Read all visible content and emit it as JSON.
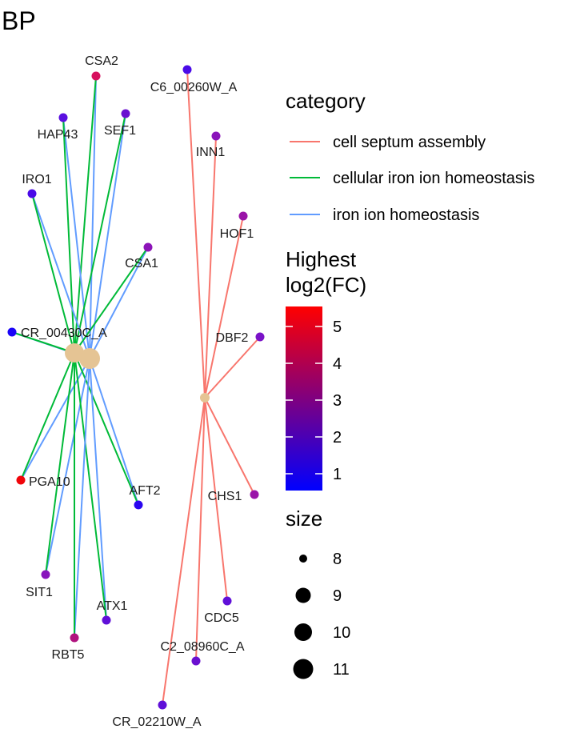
{
  "title": "BP",
  "legend": {
    "category_title": "category",
    "categories": [
      {
        "label": "cell septum assembly",
        "color": "#F8766D"
      },
      {
        "label": "cellular iron ion homeostasis",
        "color": "#00BA38"
      },
      {
        "label": "iron ion homeostasis",
        "color": "#619CFF"
      }
    ],
    "fc_title_line1": "Highest",
    "fc_title_line2": "log2(FC)",
    "fc_ticks": [
      "5",
      "4",
      "3",
      "2",
      "1"
    ],
    "fc_colors": {
      "low": "#0000FF",
      "high": "#FF0000"
    },
    "size_title": "size",
    "size_values": [
      "8",
      "9",
      "10",
      "11"
    ]
  },
  "hub_color": "#E5C494",
  "genes": {
    "CSA2": {
      "label": "CSA2",
      "color": "#D7105E"
    },
    "HAP43": {
      "label": "HAP43",
      "color": "#5A0FE0"
    },
    "SEF1": {
      "label": "SEF1",
      "color": "#6A10D0"
    },
    "IRO1": {
      "label": "IRO1",
      "color": "#4A0BE8"
    },
    "CSA1": {
      "label": "CSA1",
      "color": "#8C14B8"
    },
    "CR_00430C_A": {
      "label": "CR_00430C_A",
      "color": "#1A04F8"
    },
    "PGA10": {
      "label": "PGA10",
      "color": "#F0050A"
    },
    "AFT2": {
      "label": "AFT2",
      "color": "#2A06F0"
    },
    "SIT1": {
      "label": "SIT1",
      "color": "#8814BC"
    },
    "ATX1": {
      "label": "ATX1",
      "color": "#6010D8"
    },
    "RBT5": {
      "label": "RBT5",
      "color": "#B0127E"
    },
    "C6_00260W_A": {
      "label": "C6_00260W_A",
      "color": "#4A0BE8"
    },
    "INN1": {
      "label": "INN1",
      "color": "#8A14BA"
    },
    "HOF1": {
      "label": "HOF1",
      "color": "#9A14A8"
    },
    "DBF2": {
      "label": "DBF2",
      "color": "#7A12C8"
    },
    "CHS1": {
      "label": "CHS1",
      "color": "#9A14A8"
    },
    "CDC5": {
      "label": "CDC5",
      "color": "#6010D8"
    },
    "C2_08960C_A": {
      "label": "C2_08960C_A",
      "color": "#6A10D0"
    },
    "CR_02210W_A": {
      "label": "CR_02210W_A",
      "color": "#6010D8"
    }
  }
}
